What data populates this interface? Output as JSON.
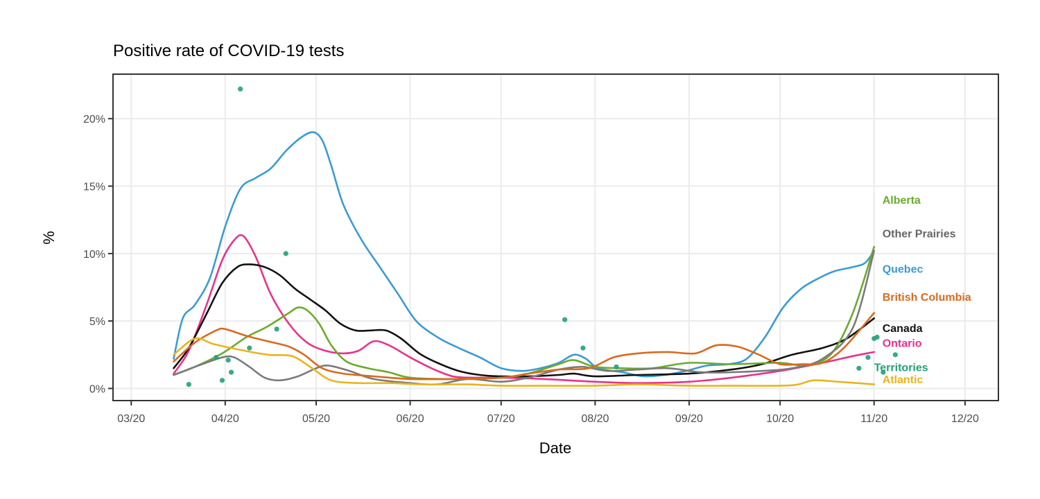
{
  "chart_data": {
    "type": "line",
    "title": "Positive rate of COVID-19 tests",
    "xlabel": "Date",
    "ylabel": "%",
    "x_ticks": [
      "2020-03-01",
      "2020-04-01",
      "2020-05-01",
      "2020-06-01",
      "2020-07-01",
      "2020-08-01",
      "2020-09-01",
      "2020-10-01",
      "2020-11-01",
      "2020-12-01"
    ],
    "x_tick_labels": [
      "03/20",
      "04/20",
      "05/20",
      "06/20",
      "07/20",
      "08/20",
      "09/20",
      "10/20",
      "11/20",
      "12/20"
    ],
    "xlim": [
      "2020-02-24",
      "2020-12-12"
    ],
    "y_ticks": [
      0,
      5,
      10,
      15,
      20
    ],
    "y_tick_labels": [
      "0%",
      "5%",
      "10%",
      "15%",
      "20%"
    ],
    "ylim": [
      -0.9,
      23.3
    ],
    "grid": true,
    "legend": "direct labels at right end of lines",
    "series": [
      {
        "name": "Quebec",
        "color": "#3a9bd4",
        "points": [
          [
            "2020-03-15",
            2.2
          ],
          [
            "2020-03-18",
            5.2
          ],
          [
            "2020-03-22",
            6.2
          ],
          [
            "2020-03-27",
            8.2
          ],
          [
            "2020-04-01",
            12.0
          ],
          [
            "2020-04-06",
            14.8
          ],
          [
            "2020-04-11",
            15.6
          ],
          [
            "2020-04-16",
            16.3
          ],
          [
            "2020-04-21",
            17.6
          ],
          [
            "2020-04-26",
            18.6
          ],
          [
            "2020-04-30",
            19.0
          ],
          [
            "2020-05-03",
            18.4
          ],
          [
            "2020-05-06",
            16.5
          ],
          [
            "2020-05-10",
            13.6
          ],
          [
            "2020-05-16",
            11.0
          ],
          [
            "2020-05-22",
            9.0
          ],
          [
            "2020-05-28",
            7.0
          ],
          [
            "2020-06-03",
            5.0
          ],
          [
            "2020-06-10",
            3.8
          ],
          [
            "2020-06-17",
            3.0
          ],
          [
            "2020-06-24",
            2.3
          ],
          [
            "2020-07-01",
            1.5
          ],
          [
            "2020-07-08",
            1.3
          ],
          [
            "2020-07-14",
            1.5
          ],
          [
            "2020-07-20",
            1.9
          ],
          [
            "2020-07-25",
            2.5
          ],
          [
            "2020-07-29",
            2.2
          ],
          [
            "2020-08-02",
            1.5
          ],
          [
            "2020-08-10",
            1.2
          ],
          [
            "2020-08-17",
            0.9
          ],
          [
            "2020-08-24",
            1.0
          ],
          [
            "2020-08-31",
            1.3
          ],
          [
            "2020-09-07",
            1.7
          ],
          [
            "2020-09-14",
            1.8
          ],
          [
            "2020-09-20",
            2.2
          ],
          [
            "2020-09-26",
            3.8
          ],
          [
            "2020-10-02",
            6.0
          ],
          [
            "2020-10-08",
            7.4
          ],
          [
            "2020-10-14",
            8.2
          ],
          [
            "2020-10-19",
            8.7
          ],
          [
            "2020-10-25",
            9.0
          ],
          [
            "2020-10-29",
            9.3
          ],
          [
            "2020-11-01",
            10.2
          ]
        ]
      },
      {
        "name": "Ontario",
        "color": "#e7338a",
        "points": [
          [
            "2020-03-15",
            1.1
          ],
          [
            "2020-03-20",
            2.8
          ],
          [
            "2020-03-26",
            6.3
          ],
          [
            "2020-03-31",
            9.5
          ],
          [
            "2020-04-04",
            11.0
          ],
          [
            "2020-04-07",
            11.3
          ],
          [
            "2020-04-11",
            9.8
          ],
          [
            "2020-04-16",
            7.0
          ],
          [
            "2020-04-22",
            4.8
          ],
          [
            "2020-04-28",
            3.4
          ],
          [
            "2020-05-04",
            2.8
          ],
          [
            "2020-05-10",
            2.6
          ],
          [
            "2020-05-15",
            2.8
          ],
          [
            "2020-05-20",
            3.5
          ],
          [
            "2020-05-25",
            3.2
          ],
          [
            "2020-06-01",
            2.3
          ],
          [
            "2020-06-08",
            1.5
          ],
          [
            "2020-06-15",
            0.9
          ],
          [
            "2020-06-22",
            0.8
          ],
          [
            "2020-07-01",
            0.8
          ],
          [
            "2020-07-15",
            0.7
          ],
          [
            "2020-08-01",
            0.5
          ],
          [
            "2020-08-15",
            0.4
          ],
          [
            "2020-09-01",
            0.5
          ],
          [
            "2020-09-15",
            0.8
          ],
          [
            "2020-10-01",
            1.3
          ],
          [
            "2020-10-15",
            1.9
          ],
          [
            "2020-10-25",
            2.4
          ],
          [
            "2020-11-01",
            2.7
          ]
        ]
      },
      {
        "name": "Canada",
        "color": "#111111",
        "points": [
          [
            "2020-03-15",
            1.5
          ],
          [
            "2020-03-20",
            3.0
          ],
          [
            "2020-03-26",
            5.6
          ],
          [
            "2020-03-31",
            7.8
          ],
          [
            "2020-04-05",
            9.0
          ],
          [
            "2020-04-09",
            9.2
          ],
          [
            "2020-04-14",
            9.0
          ],
          [
            "2020-04-19",
            8.4
          ],
          [
            "2020-04-24",
            7.4
          ],
          [
            "2020-04-29",
            6.6
          ],
          [
            "2020-05-04",
            5.8
          ],
          [
            "2020-05-09",
            4.8
          ],
          [
            "2020-05-14",
            4.3
          ],
          [
            "2020-05-19",
            4.3
          ],
          [
            "2020-05-24",
            4.3
          ],
          [
            "2020-05-29",
            3.7
          ],
          [
            "2020-06-04",
            2.6
          ],
          [
            "2020-06-10",
            1.9
          ],
          [
            "2020-06-17",
            1.3
          ],
          [
            "2020-06-24",
            1.0
          ],
          [
            "2020-07-01",
            0.9
          ],
          [
            "2020-07-10",
            0.9
          ],
          [
            "2020-07-20",
            1.0
          ],
          [
            "2020-07-25",
            1.1
          ],
          [
            "2020-08-01",
            0.9
          ],
          [
            "2020-08-15",
            1.0
          ],
          [
            "2020-09-01",
            1.1
          ],
          [
            "2020-09-15",
            1.4
          ],
          [
            "2020-09-25",
            1.8
          ],
          [
            "2020-10-05",
            2.5
          ],
          [
            "2020-10-15",
            3.0
          ],
          [
            "2020-10-23",
            3.7
          ],
          [
            "2020-11-01",
            5.2
          ]
        ]
      },
      {
        "name": "Alberta",
        "color": "#6aab2c",
        "points": [
          [
            "2020-03-15",
            1.0
          ],
          [
            "2020-03-22",
            1.6
          ],
          [
            "2020-03-31",
            2.6
          ],
          [
            "2020-04-08",
            3.8
          ],
          [
            "2020-04-15",
            4.6
          ],
          [
            "2020-04-22",
            5.6
          ],
          [
            "2020-04-25",
            6.0
          ],
          [
            "2020-04-28",
            5.8
          ],
          [
            "2020-05-02",
            4.8
          ],
          [
            "2020-05-06",
            3.2
          ],
          [
            "2020-05-11",
            2.0
          ],
          [
            "2020-05-18",
            1.5
          ],
          [
            "2020-05-25",
            1.2
          ],
          [
            "2020-06-01",
            0.8
          ],
          [
            "2020-06-15",
            0.7
          ],
          [
            "2020-07-01",
            0.8
          ],
          [
            "2020-07-10",
            1.1
          ],
          [
            "2020-07-20",
            1.8
          ],
          [
            "2020-07-25",
            2.1
          ],
          [
            "2020-08-01",
            1.6
          ],
          [
            "2020-08-10",
            1.5
          ],
          [
            "2020-08-20",
            1.5
          ],
          [
            "2020-09-01",
            1.9
          ],
          [
            "2020-09-15",
            1.8
          ],
          [
            "2020-10-01",
            1.9
          ],
          [
            "2020-10-10",
            1.7
          ],
          [
            "2020-10-18",
            2.6
          ],
          [
            "2020-10-25",
            5.6
          ],
          [
            "2020-11-01",
            10.5
          ]
        ]
      },
      {
        "name": "Other Prairies",
        "color": "#7a7a7a",
        "points": [
          [
            "2020-03-15",
            1.0
          ],
          [
            "2020-03-22",
            1.6
          ],
          [
            "2020-03-31",
            2.3
          ],
          [
            "2020-04-04",
            2.3
          ],
          [
            "2020-04-09",
            1.6
          ],
          [
            "2020-04-14",
            0.8
          ],
          [
            "2020-04-19",
            0.6
          ],
          [
            "2020-04-25",
            0.9
          ],
          [
            "2020-05-01",
            1.5
          ],
          [
            "2020-05-05",
            1.7
          ],
          [
            "2020-05-12",
            1.3
          ],
          [
            "2020-05-20",
            0.7
          ],
          [
            "2020-06-01",
            0.4
          ],
          [
            "2020-06-10",
            0.3
          ],
          [
            "2020-06-20",
            0.7
          ],
          [
            "2020-07-01",
            0.5
          ],
          [
            "2020-07-10",
            0.8
          ],
          [
            "2020-07-20",
            1.4
          ],
          [
            "2020-07-28",
            1.6
          ],
          [
            "2020-08-05",
            1.3
          ],
          [
            "2020-08-15",
            1.4
          ],
          [
            "2020-08-25",
            1.5
          ],
          [
            "2020-09-05",
            1.2
          ],
          [
            "2020-09-15",
            1.2
          ],
          [
            "2020-09-25",
            1.3
          ],
          [
            "2020-10-05",
            1.5
          ],
          [
            "2020-10-15",
            2.2
          ],
          [
            "2020-10-25",
            4.5
          ],
          [
            "2020-11-01",
            10.2
          ]
        ]
      },
      {
        "name": "British Columbia",
        "color": "#d86a1f",
        "points": [
          [
            "2020-03-15",
            2.0
          ],
          [
            "2020-03-22",
            3.4
          ],
          [
            "2020-03-29",
            4.3
          ],
          [
            "2020-04-01",
            4.4
          ],
          [
            "2020-04-08",
            3.9
          ],
          [
            "2020-04-15",
            3.5
          ],
          [
            "2020-04-22",
            3.1
          ],
          [
            "2020-04-27",
            2.5
          ],
          [
            "2020-05-03",
            1.5
          ],
          [
            "2020-05-10",
            1.1
          ],
          [
            "2020-05-20",
            0.9
          ],
          [
            "2020-06-01",
            0.7
          ],
          [
            "2020-06-15",
            0.7
          ],
          [
            "2020-07-01",
            0.8
          ],
          [
            "2020-07-10",
            1.1
          ],
          [
            "2020-07-20",
            1.4
          ],
          [
            "2020-07-30",
            1.5
          ],
          [
            "2020-08-07",
            2.3
          ],
          [
            "2020-08-15",
            2.6
          ],
          [
            "2020-08-25",
            2.7
          ],
          [
            "2020-09-03",
            2.6
          ],
          [
            "2020-09-10",
            3.2
          ],
          [
            "2020-09-17",
            3.1
          ],
          [
            "2020-09-24",
            2.5
          ],
          [
            "2020-10-01",
            1.8
          ],
          [
            "2020-10-08",
            1.8
          ],
          [
            "2020-10-15",
            1.9
          ],
          [
            "2020-10-22",
            3.0
          ],
          [
            "2020-11-01",
            5.6
          ]
        ]
      },
      {
        "name": "Atlantic",
        "color": "#e8b41e",
        "points": [
          [
            "2020-03-15",
            2.5
          ],
          [
            "2020-03-22",
            3.7
          ],
          [
            "2020-03-28",
            3.3
          ],
          [
            "2020-04-05",
            2.9
          ],
          [
            "2020-04-15",
            2.5
          ],
          [
            "2020-04-23",
            2.4
          ],
          [
            "2020-04-29",
            1.6
          ],
          [
            "2020-05-06",
            0.6
          ],
          [
            "2020-05-15",
            0.4
          ],
          [
            "2020-05-25",
            0.4
          ],
          [
            "2020-06-05",
            0.3
          ],
          [
            "2020-06-20",
            0.3
          ],
          [
            "2020-07-01",
            0.2
          ],
          [
            "2020-07-15",
            0.2
          ],
          [
            "2020-08-01",
            0.2
          ],
          [
            "2020-08-15",
            0.3
          ],
          [
            "2020-09-01",
            0.2
          ],
          [
            "2020-09-15",
            0.2
          ],
          [
            "2020-10-01",
            0.2
          ],
          [
            "2020-10-07",
            0.3
          ],
          [
            "2020-10-12",
            0.6
          ],
          [
            "2020-10-20",
            0.5
          ],
          [
            "2020-11-01",
            0.3
          ]
        ]
      }
    ],
    "territories_points": {
      "name": "Territories",
      "color": "#22a178",
      "points": [
        [
          "2020-03-20",
          0.3
        ],
        [
          "2020-03-29",
          2.3
        ],
        [
          "2020-03-31",
          0.6
        ],
        [
          "2020-04-02",
          2.1
        ],
        [
          "2020-04-03",
          1.2
        ],
        [
          "2020-04-06",
          22.2
        ],
        [
          "2020-04-09",
          3.0
        ],
        [
          "2020-04-18",
          4.4
        ],
        [
          "2020-04-21",
          10.0
        ],
        [
          "2020-07-22",
          5.1
        ],
        [
          "2020-07-28",
          3.0
        ],
        [
          "2020-08-08",
          1.6
        ],
        [
          "2020-10-27",
          1.5
        ],
        [
          "2020-10-30",
          2.3
        ],
        [
          "2020-11-01",
          3.7
        ],
        [
          "2020-11-02",
          3.8
        ],
        [
          "2020-11-04",
          1.2
        ],
        [
          "2020-11-08",
          2.5
        ]
      ]
    },
    "labels": [
      {
        "text": "Alberta",
        "color": "#6aab2c",
        "y": 14.0
      },
      {
        "text": "Other Prairies",
        "color": "#666666",
        "y": 11.5
      },
      {
        "text": "Quebec",
        "color": "#3a9bd4",
        "y": 8.9
      },
      {
        "text": "British Columbia",
        "color": "#d86a1f",
        "y": 6.8
      },
      {
        "text": "Canada",
        "color": "#111111",
        "y": 4.5
      },
      {
        "text": "Ontario",
        "color": "#e7338a",
        "y": 3.4
      },
      {
        "text": "Territories",
        "color": "#22a178",
        "y": 1.6
      },
      {
        "text": "Atlantic",
        "color": "#e8b41e",
        "y": 0.7
      }
    ]
  }
}
